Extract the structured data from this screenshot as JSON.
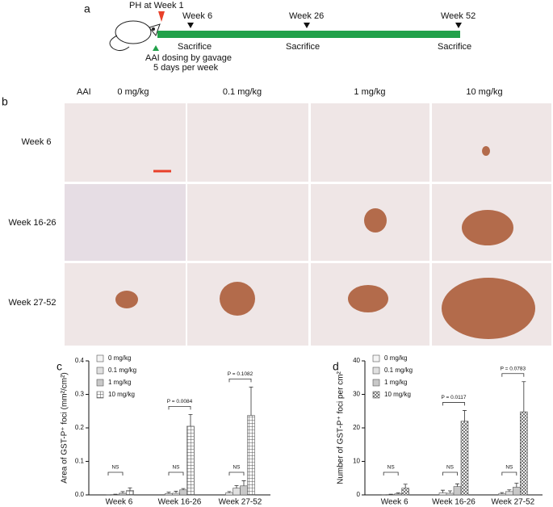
{
  "panels": {
    "a": {
      "label": "a",
      "ph": "PH at Week 1",
      "weeks": [
        "Week 6",
        "Week 26",
        "Week 52"
      ],
      "sacrifice": [
        "Sacrifice",
        "Sacrifice",
        "Sacrifice"
      ],
      "dosing": [
        "AAI dosing by gavage",
        "5 days per week"
      ]
    },
    "b": {
      "label": "b",
      "corner": "AAI",
      "columns": [
        "0 mg/kg",
        "0.1 mg/kg",
        "1 mg/kg",
        "10 mg/kg"
      ],
      "rows": [
        "Week 6",
        "Week 16-26",
        "Week 27-52"
      ]
    }
  },
  "chart_data": [
    {
      "type": "bar",
      "panel_label": "c",
      "y_label": "Area of GST-P⁺ foci (mm²/cm²)",
      "categories": [
        "Week 6",
        "Week 16-26",
        "Week 27-52"
      ],
      "series": [
        {
          "name": "0 mg/kg",
          "color": "#f4f4f4",
          "hatch": "none",
          "values": [
            0,
            0.004,
            0.006
          ],
          "errors": [
            0,
            0.004,
            0.004
          ]
        },
        {
          "name": "0.1 mg/kg",
          "color": "#e0e0e0",
          "hatch": "none",
          "values": [
            0.001,
            0.005,
            0.02
          ],
          "errors": [
            0.001,
            0.006,
            0.008
          ]
        },
        {
          "name": "1 mg/kg",
          "color": "#c8c8c8",
          "hatch": "none",
          "values": [
            0.005,
            0.015,
            0.027
          ],
          "errors": [
            0.005,
            0.004,
            0.015
          ]
        },
        {
          "name": "10 mg/kg",
          "color": "#d0d0d0",
          "hatch": "grid",
          "values": [
            0.013,
            0.205,
            0.237
          ],
          "errors": [
            0.008,
            0.035,
            0.085
          ]
        }
      ],
      "annotations": [
        "NS",
        "NS",
        "NS",
        "P = 0.0084",
        "P = 0.1082"
      ],
      "ylim": [
        0,
        0.4
      ],
      "yticks": [
        {
          "value": 0,
          "label": "0.0"
        },
        0.1,
        0.2,
        0.3,
        0.4
      ],
      "legend": "upper left"
    },
    {
      "type": "bar",
      "panel_label": "d",
      "y_label": "Number of GST-P⁺ foci per cm²",
      "categories": [
        "Week 6",
        "Week 16-26",
        "Week 27-52"
      ],
      "series": [
        {
          "name": "0 mg/kg",
          "color": "#f4f4f4",
          "hatch": "none",
          "values": [
            0,
            0.6,
            0.3
          ],
          "errors": [
            0,
            0.8,
            0.4
          ]
        },
        {
          "name": "0.1 mg/kg",
          "color": "#e0e0e0",
          "hatch": "none",
          "values": [
            0.1,
            0.5,
            1
          ],
          "errors": [
            0.1,
            0.7,
            0.5
          ]
        },
        {
          "name": "1 mg/kg",
          "color": "#c8c8c8",
          "hatch": "none",
          "values": [
            0.3,
            2.5,
            2.3
          ],
          "errors": [
            0.3,
            0.8,
            1.2
          ]
        },
        {
          "name": "10 mg/kg",
          "color": "#d0d0d0",
          "hatch": "checker",
          "values": [
            2,
            22,
            24.8
          ],
          "errors": [
            1.2,
            3.2,
            9
          ]
        }
      ],
      "annotations": [
        "NS",
        "NS",
        "NS",
        "P = 0.0117",
        "P = 0.0783"
      ],
      "ylim": [
        0,
        40
      ],
      "yticks": [
        0,
        10,
        20,
        30,
        40
      ],
      "legend": "upper left"
    }
  ]
}
